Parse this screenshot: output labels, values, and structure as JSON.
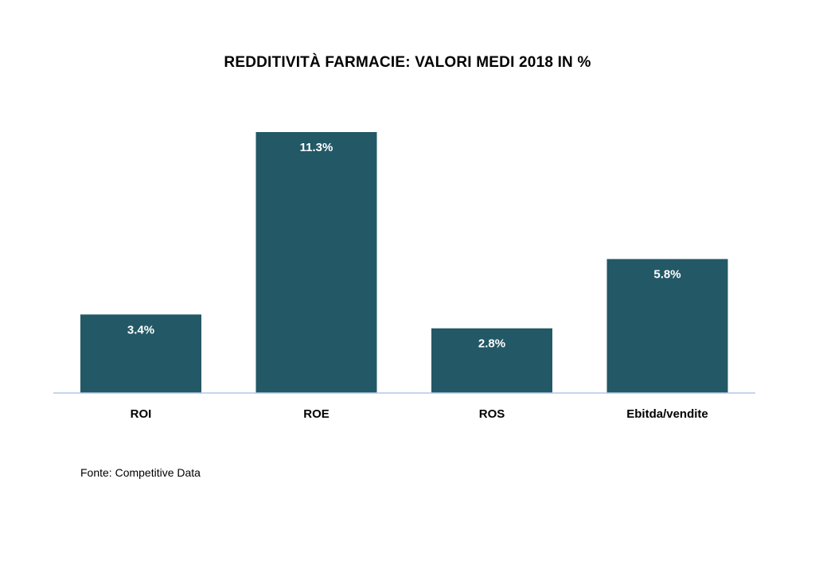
{
  "chart_data": {
    "type": "bar",
    "title": "REDDITIVITÀ FARMACIE: VALORI MEDI 2018 IN %",
    "categories": [
      "ROI",
      "ROE",
      "ROS",
      "Ebitda/vendite"
    ],
    "values": [
      3.4,
      11.3,
      2.8,
      5.8
    ],
    "data_labels": [
      "3.4%",
      "11.3%",
      "2.8%",
      "5.8%"
    ],
    "ylim": [
      0,
      11.3
    ],
    "grid": false,
    "legend": "none",
    "bar_color": "#235866",
    "axis_color": "#b4c7e7"
  },
  "footer": {
    "source": "Fonte: Competitive Data"
  }
}
